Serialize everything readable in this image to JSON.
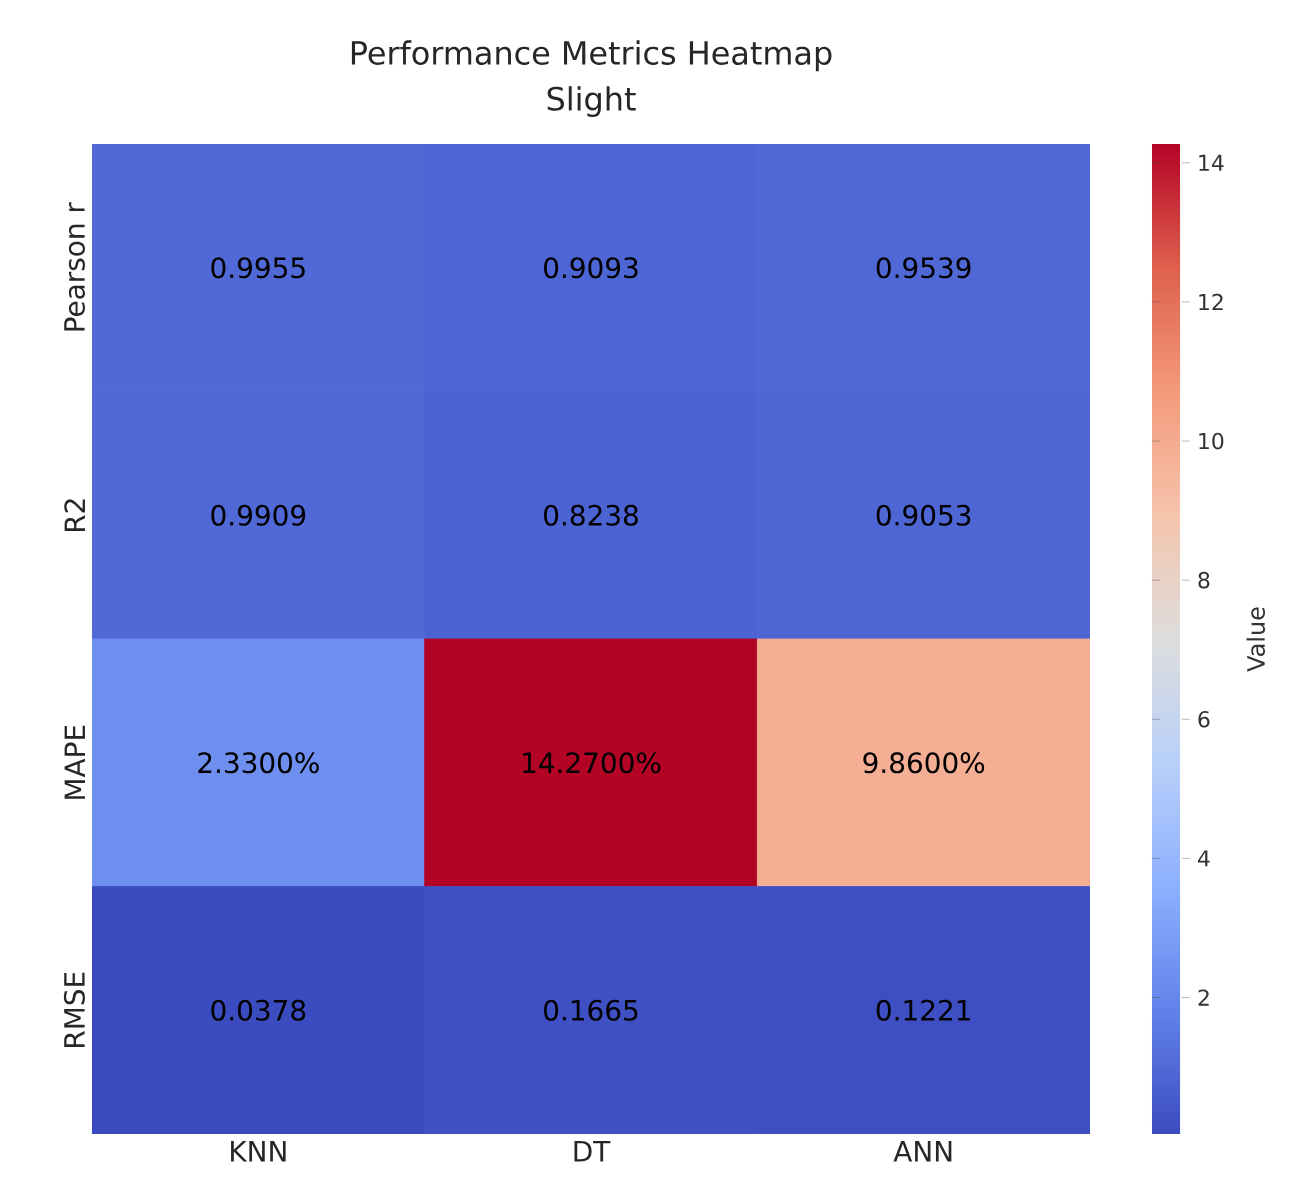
{
  "chart_data": {
    "type": "heatmap",
    "title": "Performance Metrics Heatmap",
    "subtitle": "Slight",
    "clabel": "Value",
    "categories": [
      "KNN",
      "DT",
      "ANN"
    ],
    "y_categories": [
      "Pearson r",
      "R2",
      "MAPE",
      "RMSE"
    ],
    "cells": [
      [
        0.9955,
        0.9093,
        0.9539
      ],
      [
        0.9909,
        0.8238,
        0.9053
      ],
      [
        2.33,
        14.27,
        9.86
      ],
      [
        0.0378,
        0.1665,
        0.1221
      ]
    ],
    "cell_labels": [
      [
        "0.9955",
        "0.9093",
        "0.9539"
      ],
      [
        "0.9909",
        "0.8238",
        "0.9053"
      ],
      [
        "2.3300%",
        "14.2700%",
        "9.8600%"
      ],
      [
        "0.0378",
        "0.1665",
        "0.1221"
      ]
    ],
    "clim": [
      0.0378,
      14.27
    ],
    "cticks": [
      2,
      4,
      6,
      8,
      10,
      12,
      14
    ]
  }
}
